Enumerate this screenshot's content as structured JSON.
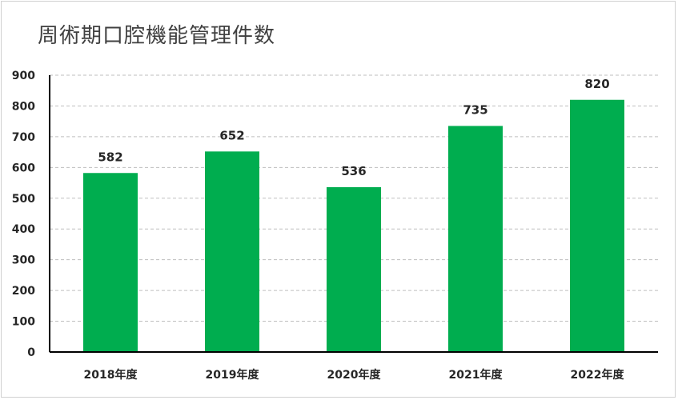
{
  "chart_data": {
    "type": "bar",
    "title": "周術期口腔機能管理件数",
    "categories": [
      "2018年度",
      "2019年度",
      "2020年度",
      "2021年度",
      "2022年度"
    ],
    "series": [
      {
        "values": [
          582,
          652,
          536,
          735,
          820
        ]
      }
    ],
    "data_labels": [
      "582",
      "652",
      "536",
      "735",
      "820"
    ],
    "y_ticks": [
      "0",
      "100",
      "200",
      "300",
      "400",
      "500",
      "600",
      "700",
      "800",
      "900"
    ],
    "ylim": [
      0,
      900
    ],
    "y_tick_step": 100,
    "bar_color": "#00AD4F",
    "grid": true,
    "grid_style": "dashed",
    "legend": "none"
  }
}
